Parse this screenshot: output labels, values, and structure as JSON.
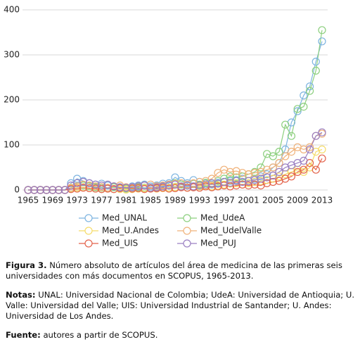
{
  "chart_data": {
    "type": "line",
    "x": [
      1965,
      1966,
      1967,
      1968,
      1969,
      1970,
      1971,
      1972,
      1973,
      1974,
      1975,
      1976,
      1977,
      1978,
      1979,
      1980,
      1981,
      1982,
      1983,
      1984,
      1985,
      1986,
      1987,
      1988,
      1989,
      1990,
      1991,
      1992,
      1993,
      1994,
      1995,
      1996,
      1997,
      1998,
      1999,
      2000,
      2001,
      2002,
      2003,
      2004,
      2005,
      2006,
      2007,
      2008,
      2009,
      2010,
      2011,
      2012,
      2013
    ],
    "xlim": [
      1965,
      2013
    ],
    "xticks": [
      1965,
      1969,
      1973,
      1977,
      1981,
      1985,
      1989,
      1993,
      1997,
      2001,
      2005,
      2009,
      2013
    ],
    "ylim": [
      0,
      400
    ],
    "yticks": [
      0,
      100,
      200,
      300,
      400
    ],
    "grid": true,
    "series": [
      {
        "name": "Med_UNAL",
        "color": "#7db4e0",
        "values": [
          0,
          0,
          0,
          0,
          0,
          0,
          0,
          15,
          25,
          20,
          15,
          12,
          14,
          10,
          8,
          6,
          5,
          8,
          10,
          12,
          8,
          10,
          14,
          15,
          28,
          20,
          15,
          22,
          18,
          15,
          12,
          16,
          18,
          20,
          22,
          25,
          20,
          25,
          30,
          35,
          50,
          60,
          90,
          150,
          175,
          210,
          230,
          285,
          330
        ]
      },
      {
        "name": "Med_UdeA",
        "color": "#8ccf7e",
        "values": [
          0,
          0,
          0,
          0,
          0,
          0,
          0,
          5,
          8,
          10,
          8,
          6,
          5,
          4,
          6,
          5,
          3,
          4,
          6,
          5,
          4,
          6,
          8,
          10,
          15,
          12,
          10,
          14,
          12,
          16,
          15,
          20,
          25,
          30,
          28,
          30,
          35,
          40,
          50,
          80,
          75,
          85,
          145,
          120,
          180,
          185,
          220,
          265,
          355
        ]
      },
      {
        "name": "Med_U.Andes",
        "color": "#f5dc6a",
        "values": [
          0,
          0,
          0,
          0,
          0,
          0,
          0,
          3,
          5,
          6,
          4,
          3,
          2,
          3,
          2,
          2,
          1,
          2,
          3,
          4,
          5,
          3,
          4,
          5,
          6,
          8,
          5,
          6,
          8,
          10,
          8,
          10,
          12,
          14,
          15,
          12,
          15,
          18,
          20,
          22,
          25,
          30,
          35,
          40,
          45,
          40,
          50,
          85,
          90
        ]
      },
      {
        "name": "Med_UdelValle",
        "color": "#f0b27a",
        "values": [
          0,
          0,
          0,
          0,
          0,
          0,
          0,
          5,
          8,
          12,
          10,
          8,
          6,
          5,
          8,
          10,
          6,
          5,
          8,
          10,
          12,
          8,
          10,
          12,
          14,
          15,
          12,
          15,
          18,
          20,
          25,
          38,
          45,
          40,
          42,
          38,
          35,
          38,
          40,
          45,
          50,
          60,
          75,
          85,
          95,
          90,
          95,
          120,
          125
        ]
      },
      {
        "name": "Med_UIS",
        "color": "#e3624a",
        "values": [
          0,
          0,
          0,
          0,
          0,
          0,
          0,
          2,
          3,
          5,
          4,
          3,
          2,
          3,
          2,
          4,
          5,
          3,
          4,
          2,
          3,
          4,
          5,
          3,
          4,
          6,
          5,
          6,
          5,
          8,
          6,
          8,
          10,
          8,
          10,
          12,
          10,
          12,
          10,
          15,
          18,
          20,
          25,
          30,
          40,
          45,
          60,
          45,
          70
        ]
      },
      {
        "name": "Med_PUJ",
        "color": "#9a7fc2",
        "values": [
          0,
          0,
          0,
          0,
          0,
          0,
          0,
          10,
          15,
          18,
          15,
          12,
          10,
          12,
          8,
          6,
          5,
          6,
          8,
          10,
          5,
          6,
          8,
          10,
          12,
          8,
          10,
          8,
          10,
          12,
          15,
          14,
          18,
          16,
          20,
          18,
          20,
          22,
          25,
          28,
          32,
          40,
          50,
          55,
          60,
          65,
          90,
          120,
          128
        ]
      }
    ]
  },
  "caption": {
    "figure_label": "Figura 3.",
    "figure_text": "Número absoluto de artículos del área de medicina de las primeras seis universidades con más documentos en SCOPUS, 1965-2013.",
    "notes_label": "Notas:",
    "notes_text": "UNAL: Universidad Nacional de Colombia; UdeA: Universidad de Antioquia; U. Valle: Universidad del Valle; UIS: Universidad Industrial de Santander; U. Andes: Universidad de Los Andes.",
    "source_label": "Fuente:",
    "source_text": "autores a partir de SCOPUS."
  }
}
